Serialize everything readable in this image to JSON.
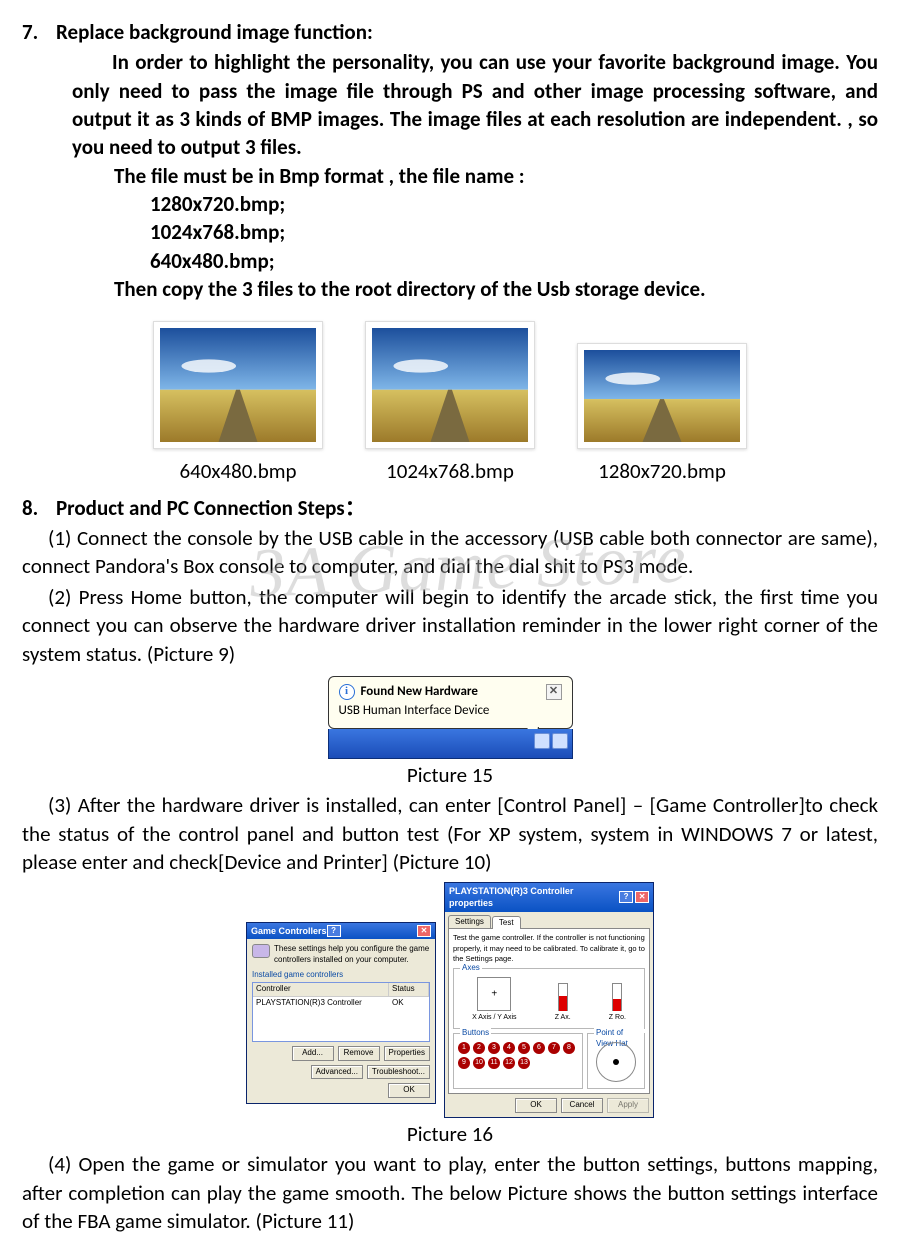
{
  "section7": {
    "num": "7.",
    "title": "Replace background image function:",
    "para": "In order to highlight the personality, you can use your favorite background image. You only need to pass the image file through PS and other image processing software, and output it as 3 kinds of BMP images. The image files at each resolution are independent. , so you need to output 3 files.",
    "formatLine": "The file must be in Bmp format , the file name :",
    "file1": "1280x720.bmp;",
    "file2": "1024x768.bmp;",
    "file3": "640x480.bmp;",
    "thenLine": "Then copy the 3 files to the root directory of the Usb storage device."
  },
  "thumbs": {
    "t1": "640x480.bmp",
    "t2": "1024x768.bmp",
    "t3": "1280x720.bmp"
  },
  "section8": {
    "num": "8.",
    "title": "Product and PC Connection Steps：",
    "step1": "(1)   Connect the console by the USB cable in the accessory (USB cable both connector are same), connect Pandora's Box console to computer, and dial the dial shit to PS3 mode.",
    "step2": "(2)   Press Home button, the computer will begin to identify the arcade stick, the first time you connect you can observe the hardware driver installation reminder in the lower right corner of the system status. (Picture 9)",
    "step3": "(3)   After the hardware driver is installed, can enter [Control Panel] – [Game Controller]to check the status of the control panel and button test (For XP system, system in WINDOWS 7 or latest, please enter and check[Device and Printer] (Picture 10)",
    "step4": "(4)   Open the game or simulator you want to play, enter the button settings, buttons mapping, after completion can play the game smooth. The below Picture shows the button settings interface of the FBA game simulator. (Picture 11)"
  },
  "balloon": {
    "title": "Found New Hardware",
    "sub": "USB Human Interface Device"
  },
  "captions": {
    "p15": "Picture 15",
    "p16": "Picture 16"
  },
  "gcDialog": {
    "title": "Game Controllers",
    "desc": "These settings help you configure the game controllers installed on your computer.",
    "groupLabel": "Installed game controllers",
    "colController": "Controller",
    "colStatus": "Status",
    "rowController": "PLAYSTATION(R)3 Controller",
    "rowStatus": "OK",
    "btnAdd": "Add...",
    "btnRemove": "Remove",
    "btnProperties": "Properties",
    "btnAdvanced": "Advanced...",
    "btnTroubleshoot": "Troubleshoot...",
    "btnOK": "OK"
  },
  "propDialog": {
    "title": "PLAYSTATION(R)3 Controller properties",
    "tabSettings": "Settings",
    "tabTest": "Test",
    "instructions": "Test the game controller. If the controller is not functioning properly, it may need to be calibrated. To calibrate it, go to the Settings page.",
    "legendAxes": "Axes",
    "axisLabelXY": "X Axis / Y Axis",
    "axisLabelZ": "Z Ax.",
    "axisLabelZR": "Z Ro.",
    "legendButtons": "Buttons",
    "legendPOV": "Point of View Hat",
    "buttonNumbers": [
      "1",
      "2",
      "3",
      "4",
      "5",
      "6",
      "7",
      "8",
      "9",
      "10",
      "11",
      "12",
      "13"
    ],
    "barFillZ": 55,
    "barFillZR": 45,
    "btnOK": "OK",
    "btnCancel": "Cancel",
    "btnApply": "Apply"
  },
  "watermark": "3A Game Store",
  "colors": {
    "balloonBg": "#fffef0",
    "taskbarTop": "#3a76e0",
    "taskbarBottom": "#1b4db8",
    "xpTitleTop": "#3a76e0",
    "xpTitleBottom": "#0a52c4",
    "xpFace": "#ece9d8",
    "buttonRed": "#a00",
    "barRed": "#d00",
    "linkBlue": "#0a4aa4"
  }
}
